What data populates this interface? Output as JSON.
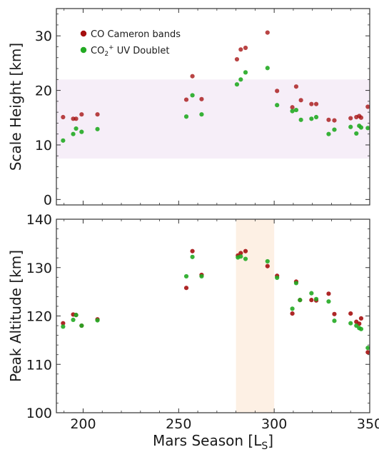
{
  "colors": {
    "co_cameron": "#a50f0f",
    "co2_uv": "#22aa22",
    "scale_band": "#f6eef8",
    "season_band": "#fdf0e4",
    "axes": "#333333"
  },
  "chart_data": [
    {
      "type": "scatter",
      "panel": "top",
      "xlabel": "",
      "ylabel": "Scale Height [km]",
      "xlim": [
        186,
        350
      ],
      "ylim": [
        -1,
        35
      ],
      "yticks": [
        "0",
        "10",
        "20",
        "30"
      ],
      "xticks": [],
      "shaded_y_band": [
        7.5,
        22
      ],
      "grid": false,
      "legend_position": "top-left",
      "legend": [
        {
          "label": "CO Cameron bands",
          "series": 0
        },
        {
          "label": "CO",
          "sub": "2",
          "sup": "+",
          "rest": " UV Doublet",
          "series": 1
        }
      ],
      "series": [
        {
          "name": "CO Cameron bands",
          "points": [
            [
              189.5,
              15.1
            ],
            [
              194.8,
              14.8
            ],
            [
              196.3,
              14.8
            ],
            [
              199.2,
              15.6
            ],
            [
              207.5,
              15.6
            ],
            [
              254,
              18.3
            ],
            [
              257.2,
              22.6
            ],
            [
              262,
              18.4
            ],
            [
              280.5,
              25.7
            ],
            [
              282.5,
              27.5
            ],
            [
              285,
              27.8
            ],
            [
              296.5,
              30.6
            ],
            [
              301.5,
              19.9
            ],
            [
              309.5,
              16.9
            ],
            [
              311.5,
              20.7
            ],
            [
              314,
              18.2
            ],
            [
              319.5,
              17.5
            ],
            [
              322,
              17.5
            ],
            [
              328.5,
              14.6
            ],
            [
              331.5,
              14.5
            ],
            [
              340,
              14.9
            ],
            [
              343,
              15.1
            ],
            [
              344.5,
              15.3
            ],
            [
              345.5,
              15.0
            ],
            [
              349,
              17.0
            ]
          ]
        },
        {
          "name": "CO2+ UV Doublet",
          "points": [
            [
              189.5,
              10.8
            ],
            [
              194.8,
              12.0
            ],
            [
              196.3,
              13.0
            ],
            [
              199.2,
              12.4
            ],
            [
              207.5,
              12.9
            ],
            [
              254,
              15.2
            ],
            [
              257.2,
              19.1
            ],
            [
              262,
              15.6
            ],
            [
              280.5,
              21.1
            ],
            [
              282.5,
              22.0
            ],
            [
              285,
              23.3
            ],
            [
              296.5,
              24.1
            ],
            [
              301.5,
              17.3
            ],
            [
              309.5,
              16.2
            ],
            [
              311.5,
              16.4
            ],
            [
              314,
              14.6
            ],
            [
              319.5,
              14.8
            ],
            [
              322,
              15.1
            ],
            [
              328.5,
              12.0
            ],
            [
              331.5,
              12.8
            ],
            [
              340,
              13.3
            ],
            [
              343,
              12.1
            ],
            [
              344.5,
              13.5
            ],
            [
              345.5,
              13.2
            ],
            [
              349,
              13.1
            ]
          ]
        }
      ]
    },
    {
      "type": "scatter",
      "panel": "bottom",
      "xlabel": "Mars Season [L",
      "xlabel_sub": "S",
      "xlabel_end": "]",
      "ylabel": "Peak Altitude [km]",
      "xlim": [
        186,
        350
      ],
      "ylim": [
        100,
        140
      ],
      "yticks": [
        "100",
        "110",
        "120",
        "130",
        "140"
      ],
      "xticks": [
        "200",
        "250",
        "300",
        "350"
      ],
      "shaded_x_band": [
        280,
        300
      ],
      "grid": false,
      "series": [
        {
          "name": "CO Cameron bands",
          "points": [
            [
              189.5,
              118.5
            ],
            [
              194.8,
              120.3
            ],
            [
              196.3,
              120.2
            ],
            [
              199.2,
              118.0
            ],
            [
              207.5,
              119.3
            ],
            [
              254,
              125.8
            ],
            [
              257.2,
              133.4
            ],
            [
              262,
              128.5
            ],
            [
              281,
              132.5
            ],
            [
              282.5,
              133.0
            ],
            [
              285,
              133.4
            ],
            [
              296.5,
              130.3
            ],
            [
              301.5,
              128.3
            ],
            [
              309.5,
              120.5
            ],
            [
              311.5,
              127.1
            ],
            [
              313.5,
              123.3
            ],
            [
              319.5,
              123.3
            ],
            [
              322,
              123.2
            ],
            [
              328.5,
              124.6
            ],
            [
              331.5,
              120.4
            ],
            [
              340,
              120.5
            ],
            [
              343,
              118.8
            ],
            [
              344.5,
              118.4
            ],
            [
              345.5,
              119.5
            ],
            [
              349,
              112.5
            ]
          ]
        },
        {
          "name": "CO2+ UV Doublet",
          "points": [
            [
              189.5,
              117.8
            ],
            [
              194.8,
              119.2
            ],
            [
              196.3,
              120.2
            ],
            [
              199.2,
              118.0
            ],
            [
              207.5,
              119.1
            ],
            [
              254,
              128.2
            ],
            [
              257.2,
              132.2
            ],
            [
              262,
              128.2
            ],
            [
              281,
              132.1
            ],
            [
              282.5,
              132.3
            ],
            [
              285,
              131.8
            ],
            [
              296.5,
              131.3
            ],
            [
              301.5,
              127.9
            ],
            [
              309.5,
              121.5
            ],
            [
              311.5,
              126.8
            ],
            [
              313.5,
              123.3
            ],
            [
              319.5,
              124.7
            ],
            [
              322,
              123.5
            ],
            [
              328.5,
              123.0
            ],
            [
              331.5,
              119.0
            ],
            [
              340,
              118.5
            ],
            [
              343,
              118.0
            ],
            [
              344.5,
              117.5
            ],
            [
              345.5,
              117.3
            ],
            [
              349,
              113.4
            ]
          ]
        }
      ]
    }
  ]
}
